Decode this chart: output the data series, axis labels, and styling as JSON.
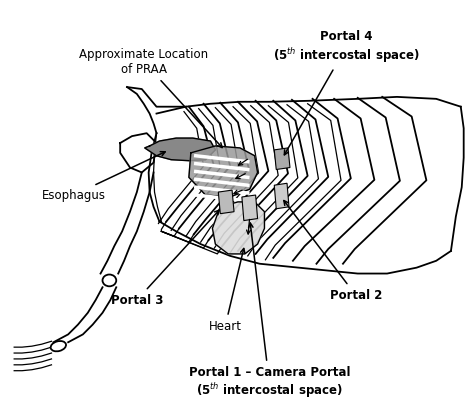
{
  "background_color": "#ffffff",
  "fig_width": 4.71,
  "fig_height": 4.09,
  "dpi": 100,
  "line_color": "#000000",
  "gray_dark": "#777777",
  "gray_mid": "#999999",
  "gray_light": "#cccccc",
  "gray_stripe": "#aaaaaa",
  "lw_main": 1.3,
  "lw_thin": 0.9,
  "labels": {
    "approx": "Approximate Location\nof PRAA",
    "esophagus": "Esophagus",
    "portal4": "Portal 4\n(5th intercostal space)",
    "portal3": "Portal 3",
    "portal2": "Portal 2",
    "heart": "Heart",
    "portal1": "Portal 1 – Camera Portal\n(5th intercostal space)"
  }
}
